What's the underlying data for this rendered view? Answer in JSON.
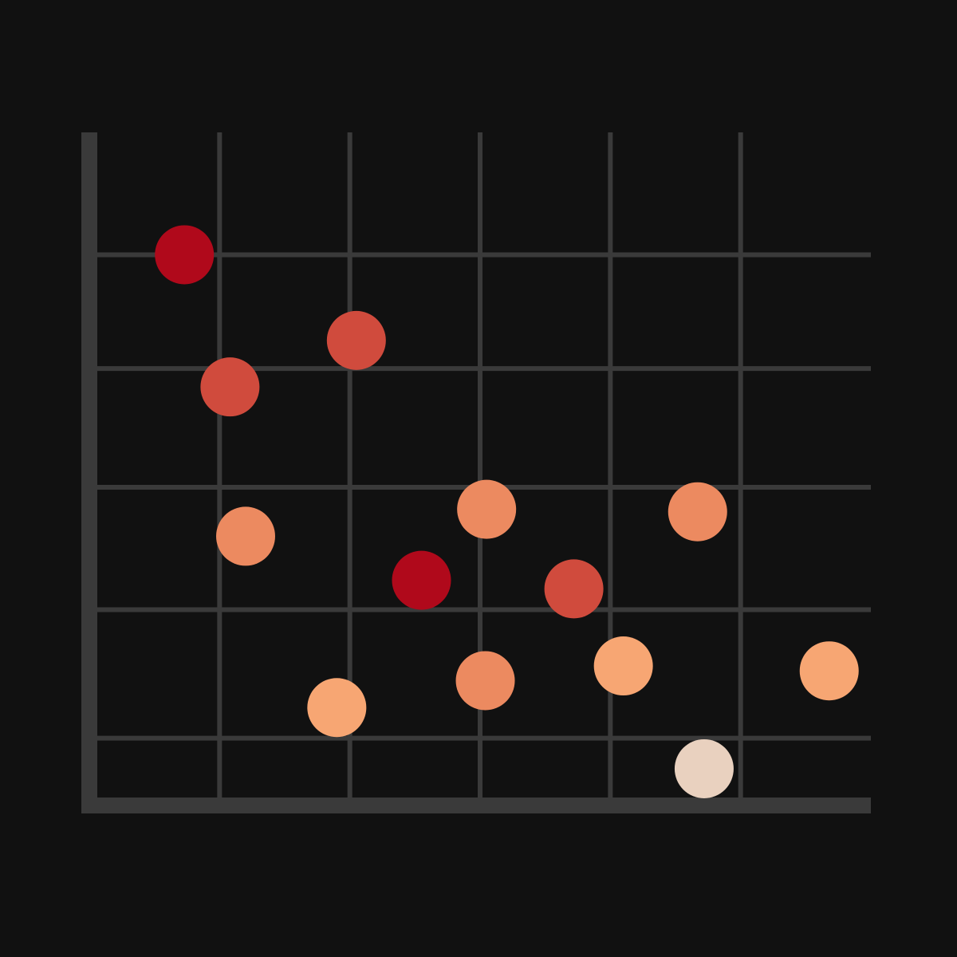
{
  "chart_data": {
    "type": "scatter",
    "title": "",
    "xlabel": "",
    "ylabel": "",
    "xlim": [
      0,
      6
    ],
    "ylim": [
      0,
      5.5
    ],
    "grid": true,
    "legend": "none",
    "x_gridlines": [
      1,
      2,
      3,
      4,
      5
    ],
    "y_gridlines": [
      0.55,
      1.6,
      2.6,
      3.57,
      4.5
    ],
    "colors": {
      "background": "#111111",
      "grid": "#3a3a3a",
      "axis": "#3a3a3a"
    },
    "points": [
      {
        "x": 0.73,
        "y": 4.5,
        "color": "#b0091b"
      },
      {
        "x": 2.05,
        "y": 3.8,
        "color": "#d04b3d"
      },
      {
        "x": 1.08,
        "y": 3.42,
        "color": "#d04b3d"
      },
      {
        "x": 3.05,
        "y": 2.42,
        "color": "#ec8a60"
      },
      {
        "x": 4.67,
        "y": 2.4,
        "color": "#ec8a60"
      },
      {
        "x": 1.2,
        "y": 2.2,
        "color": "#ec8a60"
      },
      {
        "x": 2.55,
        "y": 1.84,
        "color": "#b0091b"
      },
      {
        "x": 3.72,
        "y": 1.77,
        "color": "#d04b3d"
      },
      {
        "x": 4.1,
        "y": 1.14,
        "color": "#f7a673"
      },
      {
        "x": 5.68,
        "y": 1.1,
        "color": "#f7a673"
      },
      {
        "x": 3.04,
        "y": 1.02,
        "color": "#ec8a60"
      },
      {
        "x": 1.9,
        "y": 0.8,
        "color": "#f7a673"
      },
      {
        "x": 4.72,
        "y": 0.3,
        "color": "#e9d1bf"
      }
    ]
  }
}
